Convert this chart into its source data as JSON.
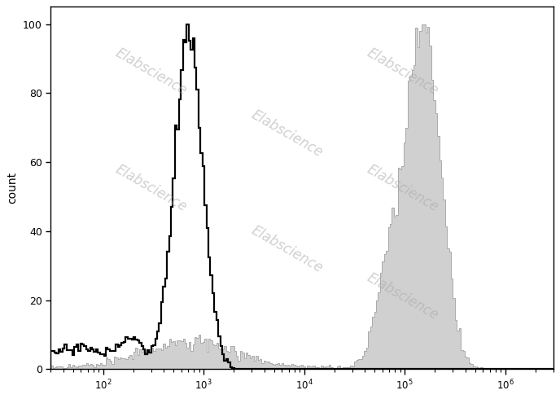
{
  "ylabel": "count",
  "ylim": [
    0,
    105
  ],
  "yticks": [
    0,
    20,
    40,
    60,
    80,
    100
  ],
  "xlim": [
    30,
    3000000
  ],
  "background_color": "#ffffff",
  "black_hist_color": "#000000",
  "gray_fill_color": "#d0d0d0",
  "gray_edge_color": "#aaaaaa",
  "black_peak_log": 2.85,
  "gray_peak_log": 5.18,
  "watermark_text": "Elabscience",
  "watermark_color": "#aaaaaa",
  "watermark_alpha": 0.55,
  "watermark_fontsize": 12,
  "watermark_rotation": -30
}
